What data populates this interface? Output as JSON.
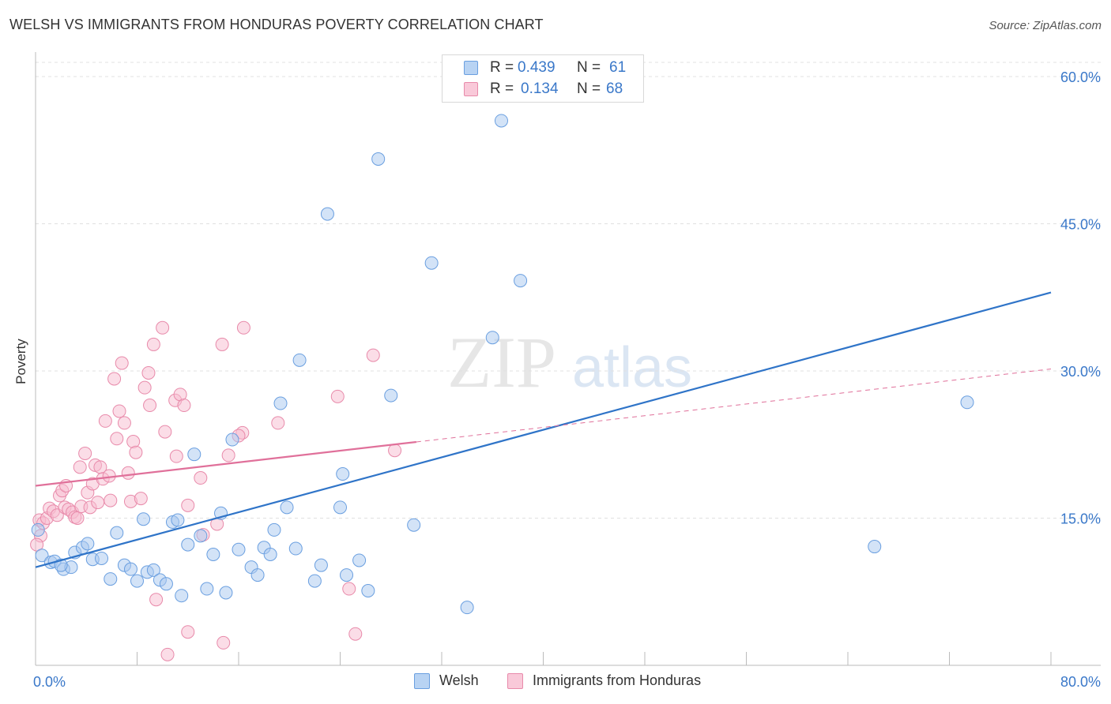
{
  "title": "WELSH VS IMMIGRANTS FROM HONDURAS POVERTY CORRELATION CHART",
  "source": "Source: ZipAtlas.com",
  "watermark": {
    "zip": "ZIP",
    "atlas": "atlas"
  },
  "colors": {
    "welsh_fill": "#a8c8f0",
    "welsh_stroke": "#6a9fe0",
    "welsh_line": "#2f74c8",
    "honduras_fill": "#f7bcd0",
    "honduras_stroke": "#e88aaa",
    "honduras_line": "#e0709a",
    "axis_text": "#3a78c9",
    "grid": "#e0e0e0"
  },
  "stats": {
    "welsh": {
      "r_label": "R =",
      "r_value": "0.439",
      "n_label": "N =",
      "n_value": "61"
    },
    "honduras": {
      "r_label": "R =",
      "r_value": "0.134",
      "n_label": "N =",
      "n_value": "68"
    }
  },
  "legend": {
    "welsh": "Welsh",
    "honduras": "Immigrants from Honduras"
  },
  "chart_data": {
    "type": "scatter",
    "title": "WELSH VS IMMIGRANTS FROM HONDURAS POVERTY CORRELATION CHART",
    "xlabel": "",
    "ylabel": "Poverty",
    "xlim": [
      0,
      80
    ],
    "ylim": [
      0,
      60
    ],
    "x_tick_labels": [
      {
        "value": 0,
        "label": "0.0%"
      },
      {
        "value": 80,
        "label": "80.0%"
      }
    ],
    "y_tick_labels": [
      {
        "value": 15,
        "label": "15.0%"
      },
      {
        "value": 30,
        "label": "30.0%"
      },
      {
        "value": 45,
        "label": "45.0%"
      },
      {
        "value": 60,
        "label": "60.0%"
      }
    ],
    "grid": "horizontal dashed",
    "legend_position": "bottom-center",
    "series": [
      {
        "name": "Welsh",
        "r": 0.439,
        "n": 61,
        "trend": {
          "x": [
            0,
            80
          ],
          "y": [
            10.0,
            38.0
          ],
          "solid_to": 80
        },
        "points": [
          [
            0.5,
            11.2
          ],
          [
            1.2,
            10.5
          ],
          [
            1.5,
            10.6
          ],
          [
            2.2,
            9.8
          ],
          [
            2.8,
            10.0
          ],
          [
            3.1,
            11.5
          ],
          [
            3.7,
            12.0
          ],
          [
            4.1,
            12.4
          ],
          [
            4.5,
            10.8
          ],
          [
            5.2,
            10.9
          ],
          [
            5.9,
            8.8
          ],
          [
            6.4,
            13.5
          ],
          [
            7.0,
            10.2
          ],
          [
            7.5,
            9.8
          ],
          [
            8.0,
            8.6
          ],
          [
            8.5,
            14.9
          ],
          [
            8.8,
            9.5
          ],
          [
            9.3,
            9.7
          ],
          [
            9.8,
            8.7
          ],
          [
            10.3,
            8.3
          ],
          [
            10.8,
            14.6
          ],
          [
            11.2,
            14.8
          ],
          [
            11.5,
            7.1
          ],
          [
            12.0,
            12.3
          ],
          [
            12.5,
            21.5
          ],
          [
            13.0,
            13.2
          ],
          [
            13.5,
            7.8
          ],
          [
            14.0,
            11.3
          ],
          [
            14.6,
            15.5
          ],
          [
            15.0,
            7.4
          ],
          [
            15.5,
            23.0
          ],
          [
            16.0,
            11.8
          ],
          [
            17.0,
            10.0
          ],
          [
            17.5,
            9.2
          ],
          [
            18.0,
            12.0
          ],
          [
            18.5,
            11.3
          ],
          [
            18.8,
            13.8
          ],
          [
            19.3,
            26.7
          ],
          [
            19.8,
            16.1
          ],
          [
            20.5,
            11.9
          ],
          [
            20.8,
            31.1
          ],
          [
            22.0,
            8.6
          ],
          [
            22.5,
            10.2
          ],
          [
            23.0,
            46.0
          ],
          [
            24.0,
            16.1
          ],
          [
            24.2,
            19.5
          ],
          [
            24.5,
            9.2
          ],
          [
            25.5,
            10.7
          ],
          [
            26.2,
            7.6
          ],
          [
            27.0,
            51.6
          ],
          [
            28.0,
            27.5
          ],
          [
            29.8,
            14.3
          ],
          [
            31.2,
            41.0
          ],
          [
            34.0,
            5.9
          ],
          [
            36.0,
            33.4
          ],
          [
            36.7,
            55.5
          ],
          [
            38.2,
            39.2
          ],
          [
            66.1,
            12.1
          ],
          [
            73.4,
            26.8
          ],
          [
            0.2,
            13.8
          ],
          [
            2.0,
            10.2
          ]
        ]
      },
      {
        "name": "Immigrants from Honduras",
        "r": 0.134,
        "n": 68,
        "trend": {
          "x": [
            0,
            80
          ],
          "y": [
            18.3,
            30.2
          ],
          "solid_to": 30
        },
        "points": [
          [
            0.3,
            14.8
          ],
          [
            0.6,
            14.5
          ],
          [
            0.9,
            15.0
          ],
          [
            1.1,
            16.0
          ],
          [
            1.4,
            15.7
          ],
          [
            1.7,
            15.3
          ],
          [
            1.9,
            17.3
          ],
          [
            2.1,
            17.8
          ],
          [
            2.3,
            16.1
          ],
          [
            2.4,
            18.3
          ],
          [
            2.6,
            15.9
          ],
          [
            2.9,
            15.6
          ],
          [
            3.1,
            15.1
          ],
          [
            3.3,
            15.0
          ],
          [
            3.5,
            20.2
          ],
          [
            3.6,
            16.2
          ],
          [
            3.9,
            21.6
          ],
          [
            4.1,
            17.6
          ],
          [
            4.3,
            16.1
          ],
          [
            4.5,
            18.5
          ],
          [
            4.7,
            20.4
          ],
          [
            4.9,
            16.6
          ],
          [
            5.1,
            20.2
          ],
          [
            5.3,
            19.0
          ],
          [
            5.5,
            24.9
          ],
          [
            5.8,
            19.3
          ],
          [
            5.9,
            16.8
          ],
          [
            6.2,
            29.2
          ],
          [
            6.4,
            23.1
          ],
          [
            6.6,
            25.9
          ],
          [
            6.8,
            30.8
          ],
          [
            7.0,
            24.7
          ],
          [
            7.3,
            19.6
          ],
          [
            7.5,
            16.7
          ],
          [
            7.7,
            22.8
          ],
          [
            7.9,
            21.7
          ],
          [
            8.3,
            17.0
          ],
          [
            8.6,
            28.3
          ],
          [
            8.9,
            29.8
          ],
          [
            9.0,
            26.5
          ],
          [
            9.3,
            32.7
          ],
          [
            9.5,
            6.7
          ],
          [
            10.0,
            34.4
          ],
          [
            10.2,
            23.8
          ],
          [
            10.4,
            1.1
          ],
          [
            11.0,
            27.0
          ],
          [
            11.1,
            21.3
          ],
          [
            11.4,
            27.6
          ],
          [
            11.7,
            26.5
          ],
          [
            12.0,
            16.3
          ],
          [
            12.0,
            3.4
          ],
          [
            13.0,
            19.1
          ],
          [
            13.2,
            13.3
          ],
          [
            14.3,
            14.4
          ],
          [
            14.7,
            32.7
          ],
          [
            14.8,
            2.3
          ],
          [
            15.2,
            21.4
          ],
          [
            16.3,
            23.7
          ],
          [
            16.4,
            34.4
          ],
          [
            16.0,
            23.4
          ],
          [
            19.1,
            24.7
          ],
          [
            23.8,
            27.4
          ],
          [
            24.7,
            7.8
          ],
          [
            25.2,
            3.2
          ],
          [
            26.6,
            31.6
          ],
          [
            28.3,
            21.9
          ],
          [
            0.4,
            13.2
          ],
          [
            0.1,
            12.3
          ]
        ]
      }
    ]
  }
}
